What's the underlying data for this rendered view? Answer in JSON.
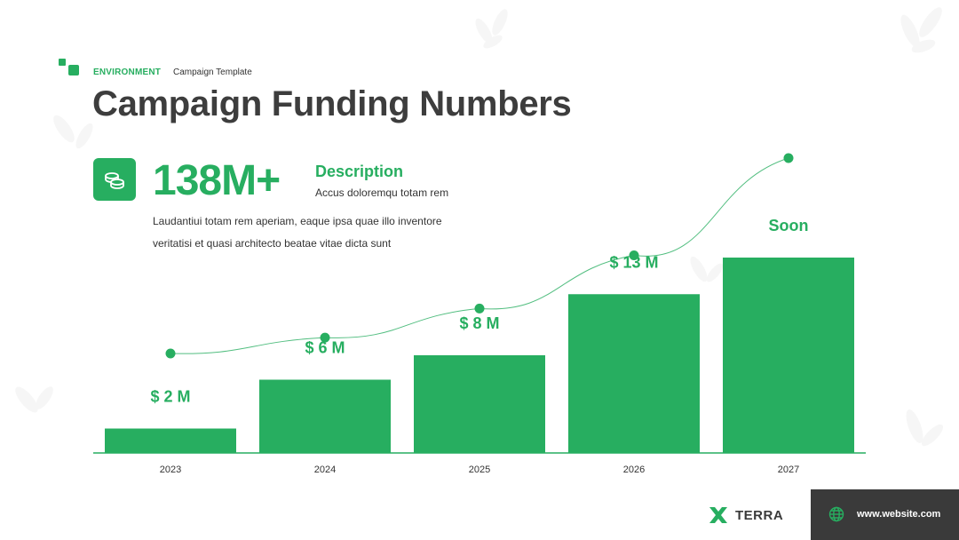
{
  "header": {
    "eyebrow": "ENVIRONMENT",
    "eyebrow_sub": "Campaign Template",
    "title": "Campaign Funding Numbers"
  },
  "stat": {
    "icon": "coins-icon",
    "value": "138M+",
    "desc_title": "Description",
    "desc_sub": "Accus doloremqu totam rem",
    "body_line1": "Laudantiui totam rem aperiam, eaque ipsa quae illo inventore",
    "body_line2": "veritatisi et quasi architecto beatae vitae dicta sunt"
  },
  "chart_data": {
    "type": "bar",
    "categories": [
      "2023",
      "2024",
      "2025",
      "2026",
      "2027"
    ],
    "values": [
      2,
      6,
      8,
      13,
      16
    ],
    "data_labels": [
      "$ 2 M",
      "$ 6 M",
      "$ 8 M",
      "$ 13 M",
      "Soon"
    ],
    "ylim": [
      0,
      16
    ],
    "trend_line": true,
    "colors": {
      "bar": "#27ae60",
      "line": "#27ae60",
      "axis": "#27ae60",
      "tick_text": "#333333",
      "label": "#27ae60"
    }
  },
  "footer": {
    "brand_icon": "terra-logo-icon",
    "brand": "TERRA",
    "globe_icon": "globe-icon",
    "website": "www.website.com"
  },
  "colors": {
    "accent": "#27ae60",
    "dark": "#3a3a3a"
  }
}
